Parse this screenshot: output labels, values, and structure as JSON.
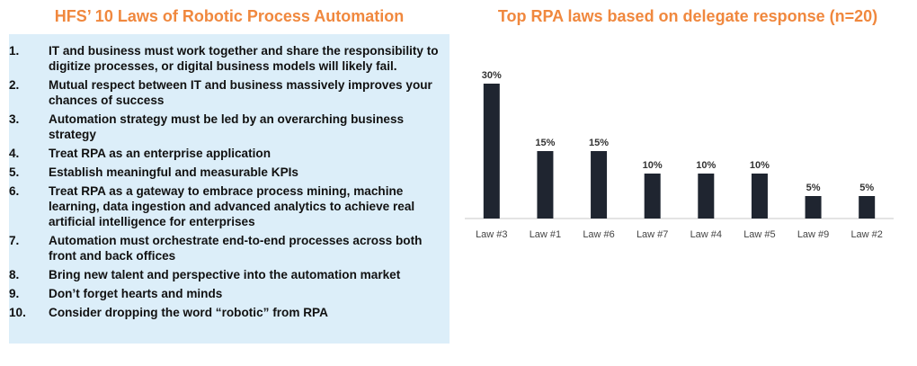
{
  "left_title": "HFS’ 10 Laws of Robotic Process Automation",
  "laws": [
    {
      "num": "1.",
      "text": "IT and business must work together and share the responsibility to digitize processes, or digital business models will likely fail."
    },
    {
      "num": "2.",
      "text": "Mutual respect between IT and business massively improves your chances of success"
    },
    {
      "num": "3.",
      "text": "Automation strategy must be led by an overarching business strategy"
    },
    {
      "num": "4.",
      "text": "Treat RPA as an enterprise application"
    },
    {
      "num": "5.",
      "text": "Establish meaningful and measurable KPIs"
    },
    {
      "num": "6.",
      "text": "Treat RPA as a gateway to embrace process mining, machine learning, data ingestion and advanced analytics to achieve real artificial intelligence for enterprises"
    },
    {
      "num": "7.",
      "text": "Automation must orchestrate end-to-end processes across both front and back offices"
    },
    {
      "num": "8.",
      "text": "Bring new talent and perspective into the automation market"
    },
    {
      "num": "9.",
      "text": "Don’t forget hearts and minds"
    },
    {
      "num": "10.",
      "text": "Consider dropping the word “robotic” from RPA"
    }
  ],
  "colors": {
    "title": "#F0883E",
    "panel": "#DCEEF9",
    "bar": "#1F2530",
    "axis": "#C8C8C8"
  },
  "chart_data": {
    "type": "bar",
    "title": "Top RPA laws based on delegate response (n=20)",
    "categories": [
      "Law #3",
      "Law #1",
      "Law #6",
      "Law #7",
      "Law #4",
      "Law #5",
      "Law #9",
      "Law #2"
    ],
    "values": [
      30,
      15,
      15,
      10,
      10,
      10,
      5,
      5
    ],
    "value_labels": [
      "30%",
      "15%",
      "15%",
      "10%",
      "10%",
      "10%",
      "5%",
      "5%"
    ],
    "unit": "%",
    "ylim": [
      0,
      30
    ],
    "grid": false,
    "legend": "none"
  }
}
